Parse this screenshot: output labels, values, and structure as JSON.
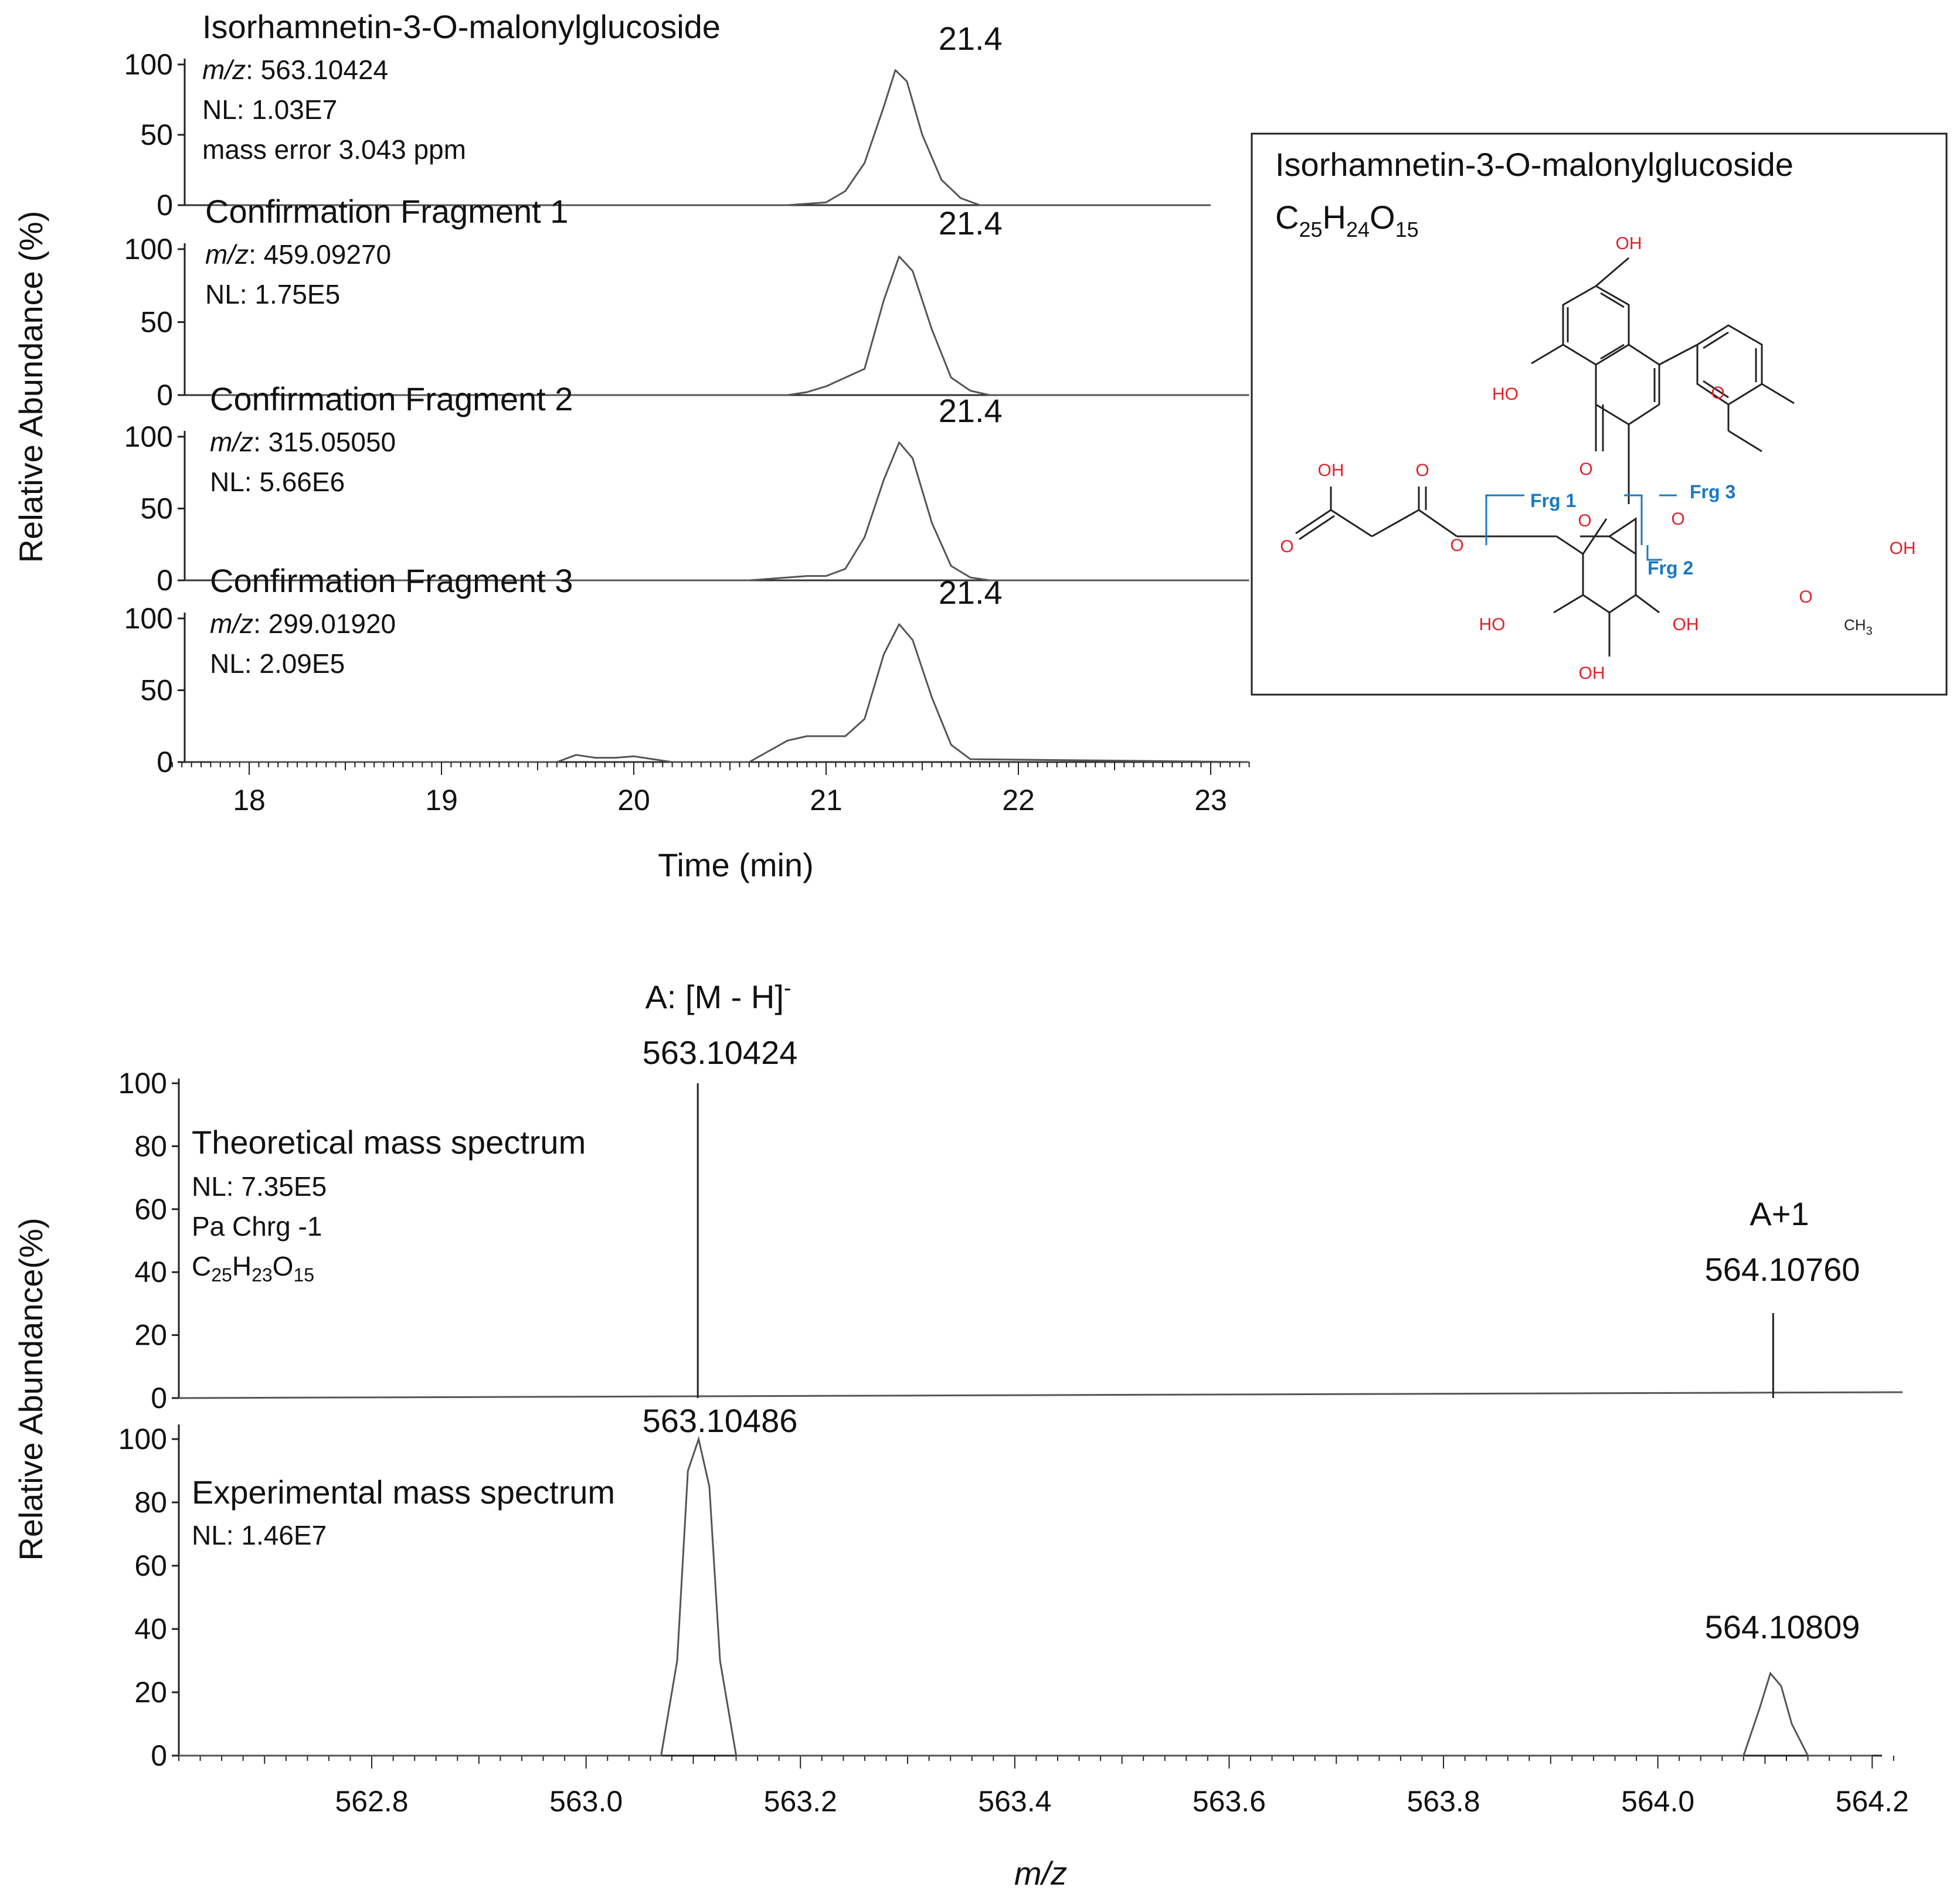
{
  "compound": {
    "name": "Isorhamnetin-3-O-malonylglucoside",
    "formula": {
      "C": "C",
      "c_sub": "25",
      "H": "H",
      "h_sub": "24",
      "O": "O",
      "o_sub": "15"
    }
  },
  "colors": {
    "line": "#555555",
    "axis": "#222222",
    "atom": "#e0202a",
    "fragment": "#1a78c2"
  },
  "chromatogram": {
    "ylabel": "Relative Abundance (%)",
    "xlabel": "Time (min)",
    "x_ticks": [
      "18",
      "19",
      "20",
      "21",
      "22",
      "23"
    ],
    "y_ticks": [
      "0",
      "50",
      "100"
    ],
    "panels": [
      {
        "title": "Isorhamnetin-3-O-malonylglucoside",
        "mz_label": "m/z",
        "mz_value": ": 563.10424",
        "nl": "NL: 1.03E7",
        "extra": "mass error 3.043 ppm",
        "peak_label": "21.4"
      },
      {
        "title": "Confirmation Fragment 1",
        "mz_label": "m/z",
        "mz_value": ": 459.09270",
        "nl": "NL: 1.75E5",
        "extra": "",
        "peak_label": "21.4"
      },
      {
        "title": "Confirmation Fragment 2",
        "mz_label": "m/z",
        "mz_value": ": 315.05050",
        "nl": "NL: 5.66E6",
        "extra": "",
        "peak_label": "21.4"
      },
      {
        "title": "Confirmation Fragment 3",
        "mz_label": "m/z",
        "mz_value": ": 299.01920",
        "nl": "NL: 2.09E5",
        "extra": "",
        "peak_label": "21.4"
      }
    ]
  },
  "spectrum": {
    "ylabel": "Relative Abundance(%)",
    "xlabel": "m/z",
    "x_ticks": [
      "562.8",
      "563.0",
      "563.2",
      "563.4",
      "563.6",
      "563.8",
      "564.0",
      "564.2"
    ],
    "y_ticks": [
      "0",
      "20",
      "40",
      "60",
      "80",
      "100"
    ],
    "theoretical": {
      "title": "Theoretical mass spectrum",
      "nl": "NL: 7.35E5",
      "charge": "Pa Chrg -1",
      "formula": {
        "C": "C",
        "c_sub": "25",
        "H": "H",
        "h_sub": "23",
        "O": "O",
        "o_sub": "15"
      },
      "peak_a_label": "A: [M - H]",
      "peak_a_sup": "-",
      "peak_a_mz": "563.10424",
      "peak_a1_label": "A+1",
      "peak_a1_mz": "564.10760"
    },
    "experimental": {
      "title": "Experimental mass spectrum",
      "nl": "NL: 1.46E7",
      "peak1_mz": "563.10486",
      "peak2_mz": "564.10809"
    }
  },
  "structure_labels": {
    "oh_top": "OH",
    "ho_left": "HO",
    "o_ring": "O",
    "o_keto": "O",
    "oh_right": "OH",
    "o_methoxy": "O",
    "ch3": "CH",
    "ch3_sub": "3",
    "mal_oh": "OH",
    "mal_o_top": "O",
    "mal_o_left": "O",
    "ester_o": "O",
    "glu_ring_o": "O",
    "glyco_o": "O",
    "glu_ho_left": "HO",
    "glu_oh_right": "OH",
    "glu_oh_bottom": "OH",
    "frg1": "Frg 1",
    "frg2": "Frg 2",
    "frg3": "Frg 3"
  },
  "chart_data": [
    {
      "type": "line",
      "title": "Isorhamnetin-3-O-malonylglucoside",
      "xlabel": "Time (min)",
      "ylabel": "Relative Abundance (%)",
      "xlim": [
        17.6,
        23.2
      ],
      "ylim": [
        0,
        100
      ],
      "series": [
        {
          "name": "Isorhamnetin-3-O-malonylglucoside",
          "x": [
            17.8,
            20.8,
            21.0,
            21.1,
            21.2,
            21.3,
            21.36,
            21.42,
            21.5,
            21.6,
            21.7,
            21.8,
            23.0
          ],
          "y": [
            0,
            0,
            2,
            10,
            30,
            70,
            96,
            88,
            50,
            18,
            5,
            0,
            0
          ]
        },
        {
          "name": "Confirmation Fragment 1",
          "x": [
            17.8,
            20.8,
            20.9,
            21.0,
            21.1,
            21.2,
            21.3,
            21.38,
            21.45,
            21.55,
            21.65,
            21.75,
            21.85,
            23.2
          ],
          "y": [
            0,
            0,
            2,
            6,
            12,
            18,
            65,
            95,
            85,
            45,
            12,
            3,
            0,
            0
          ]
        },
        {
          "name": "Confirmation Fragment 2",
          "x": [
            17.8,
            20.6,
            20.8,
            20.9,
            21.0,
            21.1,
            21.2,
            21.3,
            21.38,
            21.45,
            21.55,
            21.65,
            21.75,
            21.85,
            23.2
          ],
          "y": [
            0,
            0,
            2,
            3,
            3,
            8,
            30,
            70,
            96,
            85,
            40,
            10,
            2,
            0,
            0
          ]
        },
        {
          "name": "Confirmation Fragment 3",
          "x": [
            17.8,
            19.6,
            19.7,
            19.8,
            19.9,
            20.0,
            20.1,
            20.2,
            20.6,
            20.8,
            20.9,
            21.1,
            21.2,
            21.3,
            21.38,
            21.45,
            21.55,
            21.65,
            21.75,
            23.2
          ],
          "y": [
            0,
            0,
            5,
            3,
            3,
            4,
            2,
            0,
            0,
            15,
            18,
            18,
            30,
            75,
            96,
            85,
            45,
            12,
            2,
            0
          ]
        }
      ]
    },
    {
      "type": "bar",
      "title": "Theoretical mass spectrum",
      "xlabel": "m/z",
      "ylabel": "Relative Abundance(%)",
      "xlim": [
        562.62,
        564.22
      ],
      "ylim": [
        0,
        100
      ],
      "x": [
        563.10424,
        564.1076
      ],
      "values": [
        100,
        27
      ]
    },
    {
      "type": "line",
      "title": "Experimental mass spectrum",
      "xlabel": "m/z",
      "ylabel": "Relative Abundance(%)",
      "xlim": [
        562.62,
        564.22
      ],
      "ylim": [
        0,
        100
      ],
      "series": [
        {
          "name": "Experimental mass spectrum",
          "x": [
            562.62,
            563.07,
            563.085,
            563.095,
            563.105,
            563.115,
            563.125,
            563.14,
            564.08,
            564.095,
            564.105,
            564.115,
            564.125,
            564.14,
            564.2
          ],
          "y": [
            0,
            0,
            30,
            90,
            100,
            85,
            30,
            0,
            0,
            15,
            26,
            22,
            10,
            0,
            0
          ]
        }
      ]
    }
  ]
}
